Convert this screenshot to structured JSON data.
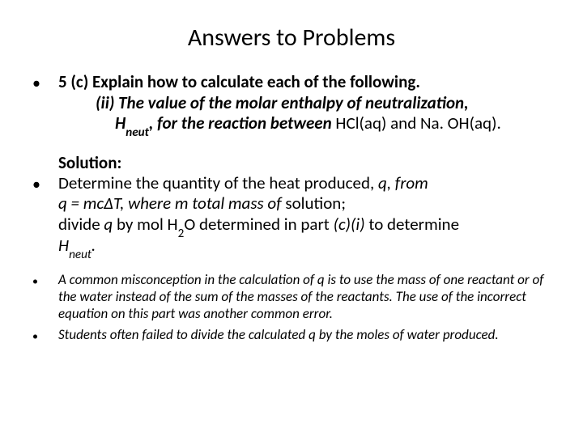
{
  "colors": {
    "bg": "#ffffff",
    "text": "#000000"
  },
  "typography": {
    "family": "Calibri",
    "title_size": 30,
    "body_size": 21,
    "note_size": 17
  },
  "title": "Answers to Problems",
  "bullets": {
    "q_lead": "5 (c) Explain how to calculate each of the following.",
    "q_sub": "(ii) The value of the molar enthalpy of neutralization,",
    "q_sub2_pre": "H",
    "q_sub2_sub": "neut",
    "q_sub2_mid": ", for the reaction between ",
    "q_sub2_tail": "HCl(aq) and Na. OH(aq).",
    "sol_label": "Solution:",
    "sol_l1_a": "Determine the quantity of the heat produced, ",
    "sol_l1_q": "q, from",
    "sol_l2_a": "q = mcΔT, where m ",
    "sol_l2_b": " total mass of ",
    "sol_l2_c": "solution;",
    "sol_l3_a": "divide ",
    "sol_l3_b": "q",
    "sol_l3_c": " by mol H",
    "sol_l3_sub": "2",
    "sol_l3_d": "O determined in part ",
    "sol_l3_e": "(c)(i) ",
    "sol_l3_f": "to determine",
    "sol_l4_a": "H",
    "sol_l4_sub": "neut",
    "sol_l4_b": ".",
    "note1_a": "A common misconception in the calculation of ",
    "note1_q": "q",
    "note1_b": " is to use the mass of one reactant or of the water instead of the sum of the masses of the reactants. The use of the incorrect equation on this part was another common error.",
    "note2_a": "Students often failed to divide the calculated ",
    "note2_q": "q",
    "note2_b": " by the moles of water produced."
  },
  "glyph": {
    "bullet": "•"
  }
}
